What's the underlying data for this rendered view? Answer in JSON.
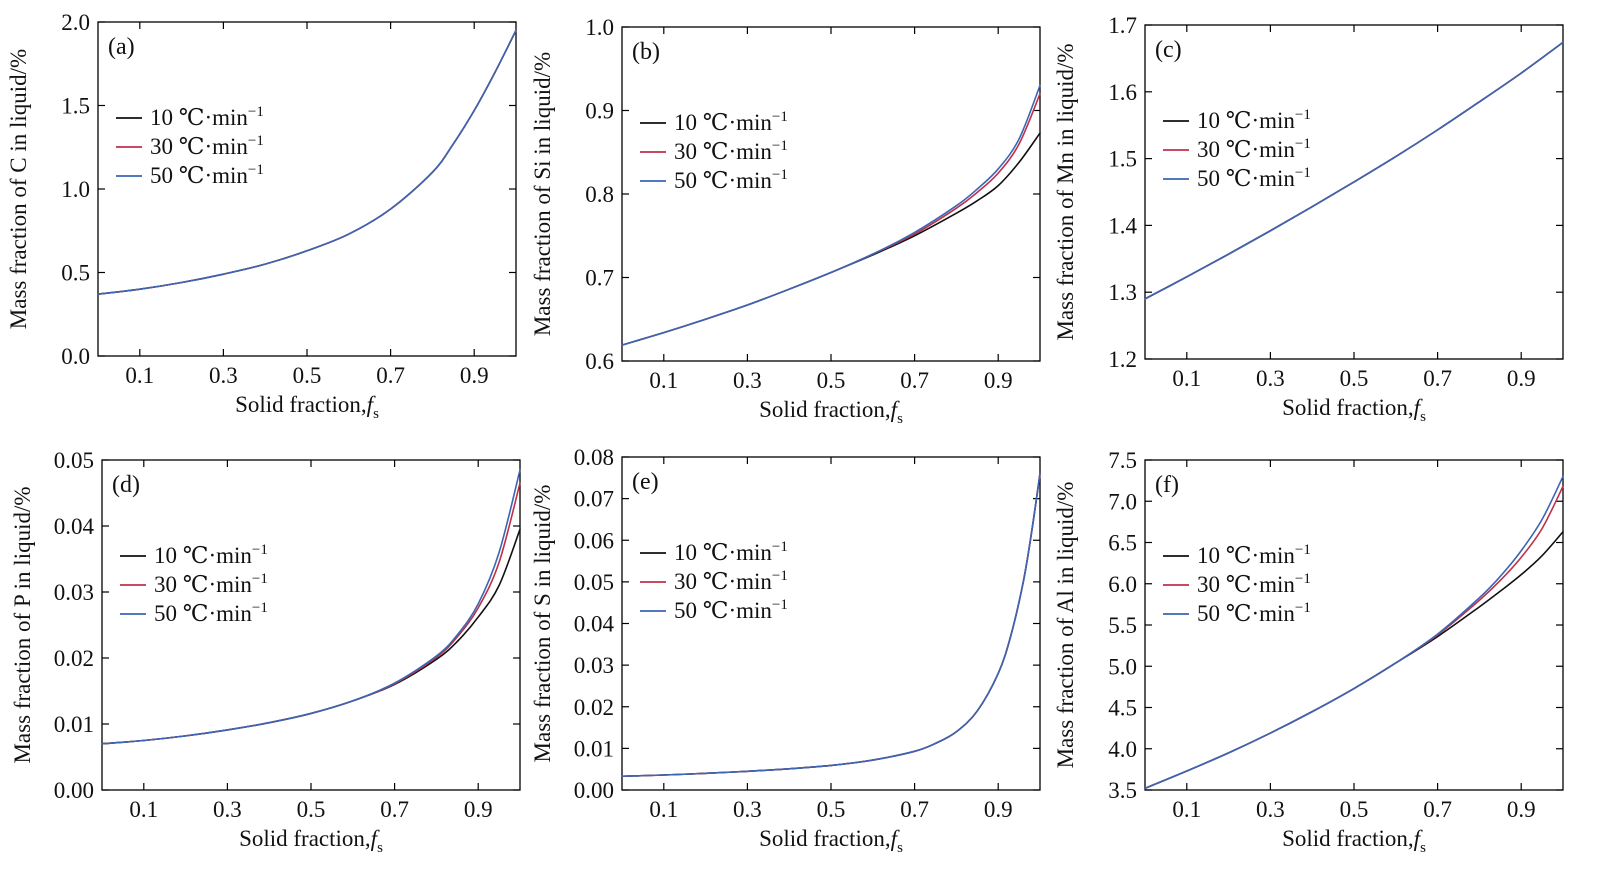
{
  "legend_labels": [
    "10 ℃·min",
    "30 ℃·min",
    "50 ℃·min"
  ],
  "legend_superscript": "−1",
  "xlabel_text": "Solid fraction,",
  "xlabel_var": "f",
  "xlabel_sub": "s",
  "colors": {
    "10": "#111111",
    "30": "#c0304a",
    "50": "#3a66b4"
  },
  "chart_data": [
    {
      "type": "line",
      "panel": "(a)",
      "ylabel": "Mass fraction of C in liquid/%",
      "xlim": [
        0,
        1
      ],
      "ylim": [
        0,
        2.0
      ],
      "xticks": [
        0.1,
        0.3,
        0.5,
        0.7,
        0.9
      ],
      "xtick_labels": [
        "0.1",
        "0.3",
        "0.5",
        "0.7",
        "0.9"
      ],
      "yticks": [
        0,
        0.5,
        1.0,
        1.5,
        2.0
      ],
      "ytick_labels": [
        "0.0",
        "0.5",
        "1.0",
        "1.5",
        "2.0"
      ],
      "x": [
        0,
        0.1,
        0.2,
        0.3,
        0.4,
        0.5,
        0.6,
        0.7,
        0.8,
        0.85,
        0.9,
        0.95,
        1.0
      ],
      "series": [
        {
          "name": "10 ℃·min⁻¹",
          "values": [
            0.37,
            0.4,
            0.44,
            0.49,
            0.55,
            0.63,
            0.73,
            0.88,
            1.1,
            1.27,
            1.47,
            1.7,
            1.95
          ]
        },
        {
          "name": "30 ℃·min⁻¹",
          "values": [
            0.37,
            0.4,
            0.44,
            0.49,
            0.55,
            0.63,
            0.73,
            0.88,
            1.1,
            1.27,
            1.47,
            1.7,
            1.95
          ]
        },
        {
          "name": "50 ℃·min⁻¹",
          "values": [
            0.37,
            0.4,
            0.44,
            0.49,
            0.55,
            0.63,
            0.73,
            0.88,
            1.1,
            1.27,
            1.47,
            1.7,
            1.95
          ]
        }
      ]
    },
    {
      "type": "line",
      "panel": "(b)",
      "ylabel": "Mass fraction of Si in liquid/%",
      "xlim": [
        0,
        1
      ],
      "ylim": [
        0.6,
        1.0
      ],
      "xticks": [
        0.1,
        0.3,
        0.5,
        0.7,
        0.9
      ],
      "xtick_labels": [
        "0.1",
        "0.3",
        "0.5",
        "0.7",
        "0.9"
      ],
      "yticks": [
        0.6,
        0.7,
        0.8,
        0.9,
        1.0
      ],
      "ytick_labels": [
        "0.6",
        "0.7",
        "0.8",
        "0.9",
        "1.0"
      ],
      "x": [
        0,
        0.1,
        0.2,
        0.3,
        0.4,
        0.5,
        0.6,
        0.7,
        0.8,
        0.85,
        0.9,
        0.95,
        1.0
      ],
      "series": [
        {
          "name": "10 ℃·min⁻¹",
          "values": [
            0.619,
            0.634,
            0.65,
            0.667,
            0.686,
            0.706,
            0.727,
            0.75,
            0.777,
            0.792,
            0.81,
            0.838,
            0.873
          ]
        },
        {
          "name": "30 ℃·min⁻¹",
          "values": [
            0.619,
            0.634,
            0.65,
            0.667,
            0.686,
            0.706,
            0.728,
            0.752,
            0.783,
            0.802,
            0.825,
            0.86,
            0.92
          ]
        },
        {
          "name": "50 ℃·min⁻¹",
          "values": [
            0.619,
            0.634,
            0.65,
            0.667,
            0.686,
            0.706,
            0.728,
            0.754,
            0.786,
            0.806,
            0.83,
            0.866,
            0.93
          ]
        }
      ]
    },
    {
      "type": "line",
      "panel": "(c)",
      "ylabel": "Mass fraction of Mn in liquid/%",
      "xlim": [
        0,
        1
      ],
      "ylim": [
        1.2,
        1.7
      ],
      "xticks": [
        0.1,
        0.3,
        0.5,
        0.7,
        0.9
      ],
      "xtick_labels": [
        "0.1",
        "0.3",
        "0.5",
        "0.7",
        "0.9"
      ],
      "yticks": [
        1.2,
        1.3,
        1.4,
        1.5,
        1.6,
        1.7
      ],
      "ytick_labels": [
        "1.2",
        "1.3",
        "1.4",
        "1.5",
        "1.6",
        "1.7"
      ],
      "x": [
        0,
        0.1,
        0.2,
        0.3,
        0.4,
        0.5,
        0.6,
        0.7,
        0.8,
        0.9,
        1.0
      ],
      "series": [
        {
          "name": "10 ℃·min⁻¹",
          "values": [
            1.29,
            1.323,
            1.357,
            1.392,
            1.428,
            1.465,
            1.503,
            1.543,
            1.585,
            1.628,
            1.674
          ]
        },
        {
          "name": "30 ℃·min⁻¹",
          "values": [
            1.29,
            1.323,
            1.357,
            1.392,
            1.428,
            1.465,
            1.503,
            1.543,
            1.585,
            1.628,
            1.674
          ]
        },
        {
          "name": "50 ℃·min⁻¹",
          "values": [
            1.29,
            1.323,
            1.357,
            1.392,
            1.428,
            1.465,
            1.503,
            1.543,
            1.585,
            1.628,
            1.674
          ]
        }
      ]
    },
    {
      "type": "line",
      "panel": "(d)",
      "ylabel": "Mass fraction of P in liquid/%",
      "xlim": [
        0,
        1
      ],
      "ylim": [
        0,
        0.05
      ],
      "xticks": [
        0.1,
        0.3,
        0.5,
        0.7,
        0.9
      ],
      "xtick_labels": [
        "0.1",
        "0.3",
        "0.5",
        "0.7",
        "0.9"
      ],
      "yticks": [
        0,
        0.01,
        0.02,
        0.03,
        0.04,
        0.05
      ],
      "ytick_labels": [
        "0.00",
        "0.01",
        "0.02",
        "0.03",
        "0.04",
        "0.05"
      ],
      "x": [
        0,
        0.1,
        0.2,
        0.3,
        0.4,
        0.5,
        0.6,
        0.7,
        0.8,
        0.85,
        0.9,
        0.95,
        1.0
      ],
      "series": [
        {
          "name": "10 ℃·min⁻¹",
          "values": [
            0.007,
            0.0075,
            0.0082,
            0.0091,
            0.0102,
            0.0116,
            0.0135,
            0.016,
            0.0198,
            0.0225,
            0.0262,
            0.031,
            0.0395
          ]
        },
        {
          "name": "30 ℃·min⁻¹",
          "values": [
            0.007,
            0.0075,
            0.0082,
            0.0091,
            0.0102,
            0.0116,
            0.0135,
            0.0161,
            0.0201,
            0.0232,
            0.0276,
            0.0345,
            0.0465
          ]
        },
        {
          "name": "50 ℃·min⁻¹",
          "values": [
            0.007,
            0.0075,
            0.0082,
            0.0091,
            0.0102,
            0.0116,
            0.0135,
            0.0162,
            0.0203,
            0.0235,
            0.0282,
            0.036,
            0.0485
          ]
        }
      ]
    },
    {
      "type": "line",
      "panel": "(e)",
      "ylabel": "Mass fraction of S in liquid/%",
      "xlim": [
        0,
        1
      ],
      "ylim": [
        0,
        0.08
      ],
      "xticks": [
        0.1,
        0.3,
        0.5,
        0.7,
        0.9
      ],
      "xtick_labels": [
        "0.1",
        "0.3",
        "0.5",
        "0.7",
        "0.9"
      ],
      "yticks": [
        0,
        0.01,
        0.02,
        0.03,
        0.04,
        0.05,
        0.06,
        0.07,
        0.08
      ],
      "ytick_labels": [
        "0.00",
        "0.01",
        "0.02",
        "0.03",
        "0.04",
        "0.05",
        "0.06",
        "0.07",
        "0.08"
      ],
      "x": [
        0,
        0.1,
        0.2,
        0.3,
        0.4,
        0.5,
        0.6,
        0.7,
        0.75,
        0.8,
        0.85,
        0.9,
        0.93,
        0.96,
        0.98,
        1.0
      ],
      "series": [
        {
          "name": "10 ℃·min⁻¹",
          "values": [
            0.0033,
            0.0036,
            0.004,
            0.0045,
            0.0051,
            0.0059,
            0.0072,
            0.0093,
            0.0112,
            0.014,
            0.019,
            0.028,
            0.037,
            0.05,
            0.062,
            0.076
          ]
        },
        {
          "name": "30 ℃·min⁻¹",
          "values": [
            0.0033,
            0.0036,
            0.004,
            0.0045,
            0.0051,
            0.0059,
            0.0072,
            0.0093,
            0.0112,
            0.014,
            0.019,
            0.028,
            0.037,
            0.05,
            0.062,
            0.076
          ]
        },
        {
          "name": "50 ℃·min⁻¹",
          "values": [
            0.0033,
            0.0036,
            0.004,
            0.0045,
            0.0051,
            0.0059,
            0.0072,
            0.0093,
            0.0112,
            0.014,
            0.019,
            0.028,
            0.037,
            0.05,
            0.062,
            0.076
          ]
        }
      ]
    },
    {
      "type": "line",
      "panel": "(f)",
      "ylabel": "Mass fraction of Al in liquid/%",
      "xlim": [
        0,
        1
      ],
      "ylim": [
        3.5,
        7.5
      ],
      "xticks": [
        0.1,
        0.3,
        0.5,
        0.7,
        0.9
      ],
      "xtick_labels": [
        "0.1",
        "0.3",
        "0.5",
        "0.7",
        "0.9"
      ],
      "yticks": [
        3.5,
        4.0,
        4.5,
        5.0,
        5.5,
        6.0,
        6.5,
        7.0,
        7.5
      ],
      "ytick_labels": [
        "3.5",
        "4.0",
        "4.5",
        "5.0",
        "5.5",
        "6.0",
        "6.5",
        "7.0",
        "7.5"
      ],
      "x": [
        0,
        0.1,
        0.2,
        0.3,
        0.4,
        0.5,
        0.6,
        0.7,
        0.8,
        0.85,
        0.9,
        0.95,
        1.0
      ],
      "series": [
        {
          "name": "10 ℃·min⁻¹",
          "values": [
            3.52,
            3.73,
            3.95,
            4.19,
            4.45,
            4.73,
            5.04,
            5.36,
            5.72,
            5.91,
            6.11,
            6.34,
            6.63
          ]
        },
        {
          "name": "30 ℃·min⁻¹",
          "values": [
            3.52,
            3.73,
            3.95,
            4.19,
            4.45,
            4.73,
            5.04,
            5.38,
            5.8,
            6.04,
            6.32,
            6.67,
            7.18
          ]
        },
        {
          "name": "50 ℃·min⁻¹",
          "values": [
            3.52,
            3.73,
            3.95,
            4.19,
            4.45,
            4.73,
            5.04,
            5.39,
            5.83,
            6.09,
            6.4,
            6.78,
            7.3
          ]
        }
      ]
    }
  ]
}
